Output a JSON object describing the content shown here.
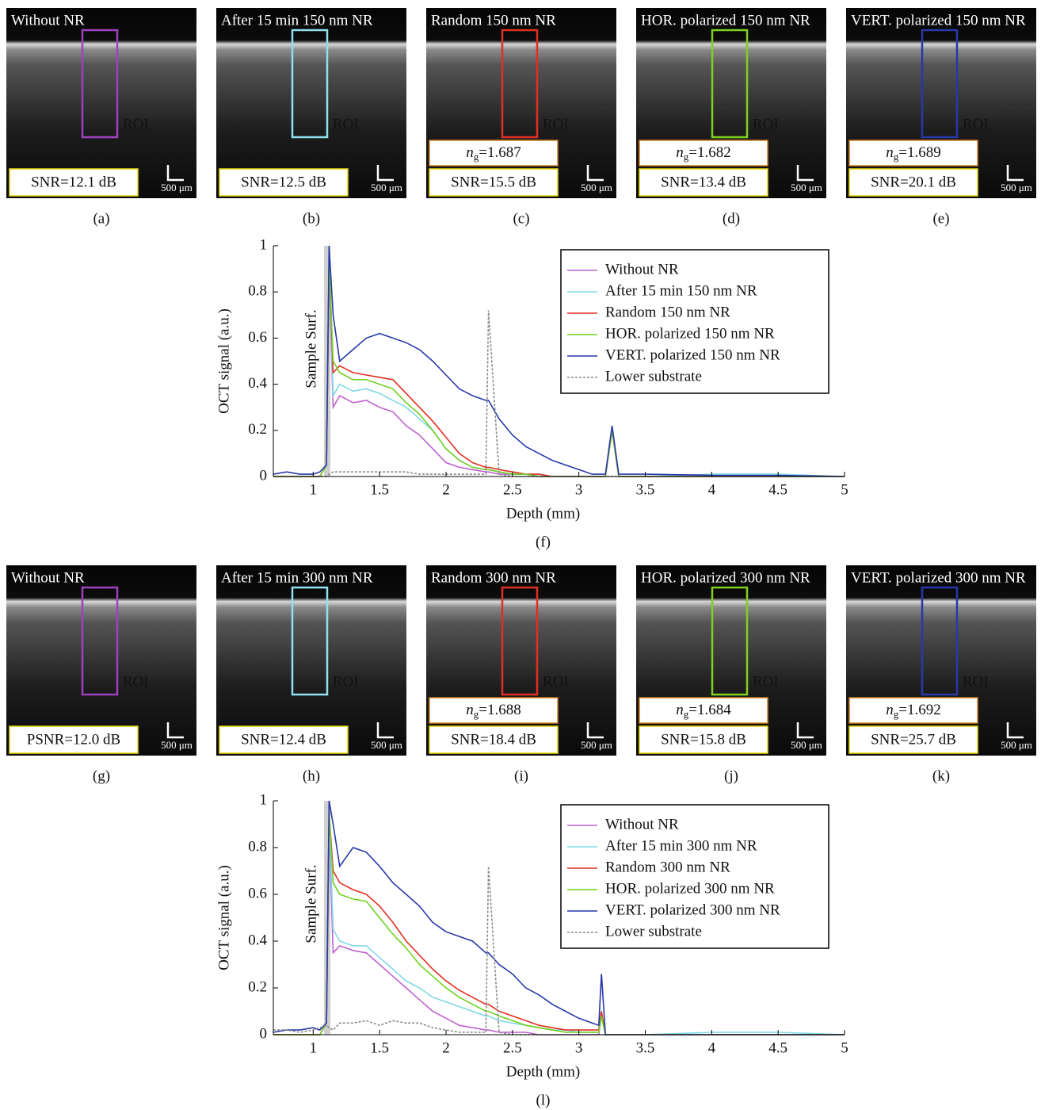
{
  "image_panels": [
    {
      "title": "Without NR",
      "color": "#a040c0",
      "roi": "ROI",
      "snr": "SNR=12.1 dB",
      "scale_bar": "500 μm",
      "caption": "(a)"
    },
    {
      "title": "After 15 min 150 nm NR",
      "color": "#90e0f0",
      "roi": "ROI",
      "snr": "SNR=12.5 dB",
      "scale_bar": "500 μm",
      "caption": "(b)"
    },
    {
      "title": "Random 150 nm NR",
      "color": "#e03020",
      "roi": "ROI",
      "index_symbol": "n",
      "index_subscript": "g",
      "index_value": "=1.687",
      "snr": "SNR=15.5 dB",
      "scale_bar": "500 μm",
      "caption": "(c)"
    },
    {
      "title": "HOR. polarized 150 nm NR",
      "color": "#80d020",
      "roi": "ROI",
      "index_symbol": "n",
      "index_subscript": "g",
      "index_value": "=1.682",
      "snr": "SNR=13.4 dB",
      "scale_bar": "500 μm",
      "caption": "(d)"
    },
    {
      "title": "VERT. polarized 150 nm NR",
      "color": "#2838a8",
      "roi": "ROI",
      "index_symbol": "n",
      "index_subscript": "g",
      "index_value": "=1.689",
      "snr": "SNR=20.1 dB",
      "scale_bar": "500 μm",
      "caption": "(e)"
    },
    {
      "title": "Without NR",
      "color": "#a040c0",
      "roi": "ROI",
      "snr": "PSNR=12.0 dB",
      "scale_bar": "500 μm",
      "caption": "(g)"
    },
    {
      "title": "After 15 min 300 nm NR",
      "color": "#90e0f0",
      "roi": "ROI",
      "snr": "SNR=12.4 dB",
      "scale_bar": "500 μm",
      "caption": "(h)"
    },
    {
      "title": "Random 300 nm NR",
      "color": "#e03020",
      "roi": "ROI",
      "index_symbol": "n",
      "index_subscript": "g",
      "index_value": "=1.688",
      "snr": "SNR=18.4 dB",
      "scale_bar": "500 μm",
      "caption": "(i)"
    },
    {
      "title": "HOR. polarized 300 nm NR",
      "color": "#80d020",
      "roi": "ROI",
      "index_symbol": "n",
      "index_subscript": "g",
      "index_value": "=1.684",
      "snr": "SNR=15.8 dB",
      "scale_bar": "500 μm",
      "caption": "(j)"
    },
    {
      "title": "VERT. polarized 300 nm NR",
      "color": "#2838a8",
      "roi": "ROI",
      "index_symbol": "n",
      "index_subscript": "g",
      "index_value": "=1.692",
      "snr": "SNR=25.7 dB",
      "scale_bar": "500 μm",
      "caption": "(k)"
    }
  ],
  "chart_data": [
    {
      "type": "line",
      "caption": "(f)",
      "x_label": "Depth (mm)",
      "y_label": "OCT signal (a.u.)",
      "annotation": "Sample Surf.",
      "xlim": [
        0.7,
        5
      ],
      "ylim": [
        0,
        1
      ],
      "xticks": [
        1,
        1.5,
        2,
        2.5,
        3,
        3.5,
        4,
        4.5,
        5
      ],
      "yticks": [
        0,
        0.2,
        0.4,
        0.6,
        0.8,
        1
      ],
      "legend": "upper right",
      "x": [
        0.7,
        0.8,
        0.9,
        1.0,
        1.05,
        1.1,
        1.12,
        1.15,
        1.2,
        1.3,
        1.4,
        1.5,
        1.6,
        1.7,
        1.8,
        1.9,
        2.0,
        2.1,
        2.2,
        2.3,
        2.32,
        2.4,
        2.5,
        2.6,
        2.7,
        2.8,
        2.9,
        3.0,
        3.1,
        3.2,
        3.25,
        3.3,
        3.5,
        4.0,
        4.5,
        5.0
      ],
      "series": [
        {
          "name": "Without NR",
          "color": "#c060d0",
          "dashed": false,
          "values": [
            0,
            0,
            0,
            0,
            0,
            0.05,
            0.9,
            0.3,
            0.35,
            0.32,
            0.33,
            0.3,
            0.28,
            0.22,
            0.18,
            0.12,
            0.06,
            0.04,
            0.03,
            0.02,
            0.02,
            0.01,
            0.01,
            0.01,
            0,
            0,
            0,
            0,
            0,
            0,
            0.2,
            0,
            0,
            0,
            0,
            0
          ]
        },
        {
          "name": "After 15 min 150 nm NR",
          "color": "#80d8e8",
          "dashed": false,
          "values": [
            0,
            0,
            0,
            0,
            0,
            0.05,
            0.95,
            0.35,
            0.4,
            0.37,
            0.38,
            0.36,
            0.33,
            0.3,
            0.25,
            0.2,
            0.12,
            0.07,
            0.04,
            0.03,
            0.03,
            0.02,
            0.01,
            0.01,
            0.01,
            0,
            0,
            0,
            0,
            0,
            0.2,
            0,
            0,
            0.01,
            0.01,
            0
          ]
        },
        {
          "name": "Random 150 nm NR",
          "color": "#e03020",
          "dashed": false,
          "values": [
            0,
            0,
            0,
            0,
            0,
            0.05,
            0.95,
            0.45,
            0.48,
            0.45,
            0.44,
            0.43,
            0.42,
            0.36,
            0.3,
            0.24,
            0.17,
            0.1,
            0.06,
            0.04,
            0.04,
            0.03,
            0.02,
            0.01,
            0.01,
            0,
            0,
            0,
            0,
            0,
            0.2,
            0,
            0,
            0,
            0,
            0
          ]
        },
        {
          "name": "HOR. polarized 150 nm NR",
          "color": "#70d020",
          "dashed": false,
          "values": [
            0,
            0,
            0,
            0,
            0,
            0.05,
            0.95,
            0.5,
            0.45,
            0.42,
            0.42,
            0.4,
            0.38,
            0.32,
            0.27,
            0.2,
            0.12,
            0.07,
            0.04,
            0.03,
            0.03,
            0.02,
            0.01,
            0.01,
            0,
            0,
            0,
            0,
            0,
            0,
            0.2,
            0,
            0,
            0,
            0,
            0
          ]
        },
        {
          "name": "VERT. polarized 150 nm NR",
          "color": "#2838a8",
          "dashed": false,
          "values": [
            0.01,
            0.02,
            0.01,
            0.01,
            0.02,
            0.05,
            1.0,
            0.7,
            0.5,
            0.55,
            0.6,
            0.62,
            0.6,
            0.58,
            0.55,
            0.5,
            0.44,
            0.38,
            0.35,
            0.33,
            0.33,
            0.25,
            0.18,
            0.13,
            0.1,
            0.07,
            0.05,
            0.03,
            0.01,
            0.01,
            0.22,
            0.01,
            0.01,
            0.005,
            0.005,
            0
          ]
        },
        {
          "name": "Lower substrate",
          "color": "#888888",
          "dashed": true,
          "values": [
            0,
            0,
            0,
            0,
            0,
            0,
            0.01,
            0.02,
            0.02,
            0.02,
            0.02,
            0.02,
            0.02,
            0.02,
            0.01,
            0.01,
            0.01,
            0.01,
            0.01,
            0.01,
            0.72,
            0.01,
            0,
            0,
            0,
            0,
            0,
            0,
            0,
            0,
            0,
            0,
            0,
            0,
            0,
            0
          ]
        }
      ]
    },
    {
      "type": "line",
      "caption": "(l)",
      "x_label": "Depth (mm)",
      "y_label": "OCT signal (a.u.)",
      "annotation": "Sample Surf.",
      "xlim": [
        0.7,
        5
      ],
      "ylim": [
        0,
        1
      ],
      "xticks": [
        1,
        1.5,
        2,
        2.5,
        3,
        3.5,
        4,
        4.5,
        5
      ],
      "yticks": [
        0,
        0.2,
        0.4,
        0.6,
        0.8,
        1
      ],
      "legend": "upper right",
      "x": [
        0.7,
        0.8,
        0.9,
        1.0,
        1.05,
        1.1,
        1.12,
        1.15,
        1.2,
        1.3,
        1.4,
        1.5,
        1.6,
        1.7,
        1.8,
        1.9,
        2.0,
        2.1,
        2.2,
        2.3,
        2.32,
        2.4,
        2.5,
        2.6,
        2.7,
        2.8,
        2.9,
        3.0,
        3.1,
        3.15,
        3.17,
        3.2,
        3.5,
        4.0,
        4.5,
        5.0
      ],
      "series": [
        {
          "name": "Without NR",
          "color": "#c060d0",
          "dashed": false,
          "values": [
            0,
            0,
            0,
            0,
            0,
            0.05,
            0.9,
            0.35,
            0.38,
            0.36,
            0.35,
            0.3,
            0.25,
            0.2,
            0.15,
            0.1,
            0.07,
            0.04,
            0.03,
            0.02,
            0.02,
            0.01,
            0.01,
            0.01,
            0,
            0,
            0,
            0,
            0,
            0,
            0.08,
            0,
            0,
            0,
            0,
            0
          ]
        },
        {
          "name": "After 15 min 300 nm NR",
          "color": "#80d8e8",
          "dashed": false,
          "values": [
            0,
            0,
            0,
            0,
            0,
            0.05,
            0.95,
            0.45,
            0.4,
            0.38,
            0.38,
            0.33,
            0.28,
            0.23,
            0.2,
            0.16,
            0.14,
            0.12,
            0.1,
            0.08,
            0.08,
            0.06,
            0.05,
            0.04,
            0.03,
            0.02,
            0.02,
            0.01,
            0.01,
            0.01,
            0.08,
            0,
            0,
            0.01,
            0.01,
            0
          ]
        },
        {
          "name": "Random 300 nm NR",
          "color": "#e03020",
          "dashed": false,
          "values": [
            0,
            0,
            0,
            0,
            0,
            0.05,
            0.95,
            0.7,
            0.65,
            0.62,
            0.6,
            0.55,
            0.48,
            0.4,
            0.34,
            0.28,
            0.23,
            0.19,
            0.16,
            0.13,
            0.13,
            0.1,
            0.08,
            0.06,
            0.04,
            0.03,
            0.02,
            0.02,
            0.02,
            0.02,
            0.1,
            0,
            0,
            0,
            0,
            0
          ]
        },
        {
          "name": "HOR. polarized 300 nm NR",
          "color": "#70d020",
          "dashed": false,
          "values": [
            0,
            0,
            0,
            0,
            0,
            0.05,
            0.95,
            0.65,
            0.6,
            0.58,
            0.57,
            0.5,
            0.43,
            0.37,
            0.3,
            0.25,
            0.2,
            0.16,
            0.13,
            0.1,
            0.1,
            0.08,
            0.06,
            0.04,
            0.03,
            0.02,
            0.01,
            0.01,
            0.01,
            0.01,
            0.08,
            0,
            0,
            0,
            0,
            0
          ]
        },
        {
          "name": "VERT. polarized 300 nm NR",
          "color": "#2838a8",
          "dashed": false,
          "values": [
            0.01,
            0.02,
            0.02,
            0.03,
            0.02,
            0.05,
            1.0,
            0.9,
            0.72,
            0.8,
            0.78,
            0.72,
            0.65,
            0.6,
            0.55,
            0.48,
            0.44,
            0.42,
            0.4,
            0.35,
            0.35,
            0.3,
            0.26,
            0.2,
            0.17,
            0.13,
            0.1,
            0.07,
            0.05,
            0.04,
            0.26,
            0,
            0,
            0,
            0,
            0
          ]
        },
        {
          "name": "Lower substrate",
          "color": "#888888",
          "dashed": true,
          "values": [
            0.02,
            0.02,
            0.01,
            0.02,
            0.03,
            0.04,
            0.03,
            0.02,
            0.05,
            0.05,
            0.06,
            0.04,
            0.06,
            0.05,
            0.05,
            0.03,
            0.02,
            0.01,
            0.01,
            0.01,
            0.72,
            0.01,
            0,
            0,
            0,
            0,
            0,
            0,
            0,
            0,
            0,
            0,
            0,
            0,
            0,
            0
          ]
        }
      ]
    }
  ]
}
